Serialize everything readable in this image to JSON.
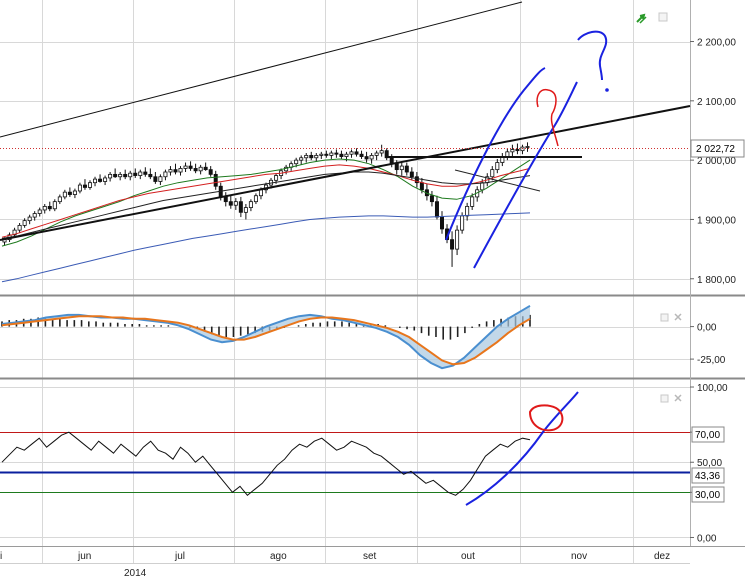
{
  "chart_data": [
    {
      "pane": "price",
      "type": "candlestick",
      "y_ticks": [
        "2 200,00",
        "2 100,00",
        "2 000,00",
        "1 900,00",
        "1 800,00"
      ],
      "y_tick_values": [
        2200,
        2100,
        2000,
        1900,
        1800
      ],
      "ylim": [
        1776,
        2270
      ],
      "last_price_label": "2 022,72",
      "last_price": 2022.72,
      "candles": [
        {
          "o": 1862,
          "h": 1870,
          "l": 1856,
          "c": 1866
        },
        {
          "o": 1866,
          "h": 1878,
          "l": 1862,
          "c": 1874
        },
        {
          "o": 1874,
          "h": 1886,
          "l": 1870,
          "c": 1882
        },
        {
          "o": 1882,
          "h": 1894,
          "l": 1878,
          "c": 1890
        },
        {
          "o": 1890,
          "h": 1902,
          "l": 1886,
          "c": 1898
        },
        {
          "o": 1898,
          "h": 1908,
          "l": 1892,
          "c": 1904
        },
        {
          "o": 1904,
          "h": 1914,
          "l": 1898,
          "c": 1910
        },
        {
          "o": 1910,
          "h": 1920,
          "l": 1905,
          "c": 1916
        },
        {
          "o": 1916,
          "h": 1926,
          "l": 1910,
          "c": 1922
        },
        {
          "o": 1922,
          "h": 1930,
          "l": 1914,
          "c": 1918
        },
        {
          "o": 1918,
          "h": 1934,
          "l": 1914,
          "c": 1930
        },
        {
          "o": 1930,
          "h": 1942,
          "l": 1926,
          "c": 1938
        },
        {
          "o": 1938,
          "h": 1950,
          "l": 1934,
          "c": 1946
        },
        {
          "o": 1946,
          "h": 1954,
          "l": 1938,
          "c": 1942
        },
        {
          "o": 1942,
          "h": 1952,
          "l": 1936,
          "c": 1948
        },
        {
          "o": 1948,
          "h": 1962,
          "l": 1944,
          "c": 1958
        },
        {
          "o": 1958,
          "h": 1968,
          "l": 1950,
          "c": 1954
        },
        {
          "o": 1954,
          "h": 1966,
          "l": 1950,
          "c": 1962
        },
        {
          "o": 1962,
          "h": 1972,
          "l": 1956,
          "c": 1968
        },
        {
          "o": 1968,
          "h": 1976,
          "l": 1962,
          "c": 1964
        },
        {
          "o": 1964,
          "h": 1974,
          "l": 1958,
          "c": 1970
        },
        {
          "o": 1970,
          "h": 1980,
          "l": 1964,
          "c": 1976
        },
        {
          "o": 1976,
          "h": 1986,
          "l": 1970,
          "c": 1972
        },
        {
          "o": 1972,
          "h": 1980,
          "l": 1966,
          "c": 1976
        },
        {
          "o": 1976,
          "h": 1984,
          "l": 1968,
          "c": 1972
        },
        {
          "o": 1972,
          "h": 1982,
          "l": 1966,
          "c": 1978
        },
        {
          "o": 1978,
          "h": 1986,
          "l": 1970,
          "c": 1974
        },
        {
          "o": 1974,
          "h": 1984,
          "l": 1968,
          "c": 1980
        },
        {
          "o": 1980,
          "h": 1988,
          "l": 1972,
          "c": 1976
        },
        {
          "o": 1976,
          "h": 1986,
          "l": 1968,
          "c": 1972
        },
        {
          "o": 1972,
          "h": 1980,
          "l": 1960,
          "c": 1964
        },
        {
          "o": 1964,
          "h": 1976,
          "l": 1958,
          "c": 1972
        },
        {
          "o": 1972,
          "h": 1984,
          "l": 1966,
          "c": 1980
        },
        {
          "o": 1980,
          "h": 1990,
          "l": 1974,
          "c": 1984
        },
        {
          "o": 1984,
          "h": 1994,
          "l": 1976,
          "c": 1980
        },
        {
          "o": 1980,
          "h": 1990,
          "l": 1974,
          "c": 1986
        },
        {
          "o": 1986,
          "h": 1996,
          "l": 1980,
          "c": 1990
        },
        {
          "o": 1990,
          "h": 1998,
          "l": 1982,
          "c": 1986
        },
        {
          "o": 1986,
          "h": 1994,
          "l": 1978,
          "c": 1982
        },
        {
          "o": 1982,
          "h": 1992,
          "l": 1976,
          "c": 1988
        },
        {
          "o": 1988,
          "h": 1996,
          "l": 1982,
          "c": 1984
        },
        {
          "o": 1984,
          "h": 1990,
          "l": 1972,
          "c": 1976
        },
        {
          "o": 1976,
          "h": 1982,
          "l": 1950,
          "c": 1956
        },
        {
          "o": 1956,
          "h": 1962,
          "l": 1932,
          "c": 1938
        },
        {
          "o": 1938,
          "h": 1946,
          "l": 1922,
          "c": 1930
        },
        {
          "o": 1930,
          "h": 1940,
          "l": 1918,
          "c": 1924
        },
        {
          "o": 1924,
          "h": 1936,
          "l": 1916,
          "c": 1930
        },
        {
          "o": 1930,
          "h": 1938,
          "l": 1904,
          "c": 1912
        },
        {
          "o": 1912,
          "h": 1926,
          "l": 1900,
          "c": 1920
        },
        {
          "o": 1920,
          "h": 1934,
          "l": 1914,
          "c": 1930
        },
        {
          "o": 1930,
          "h": 1944,
          "l": 1926,
          "c": 1940
        },
        {
          "o": 1940,
          "h": 1954,
          "l": 1934,
          "c": 1950
        },
        {
          "o": 1950,
          "h": 1962,
          "l": 1944,
          "c": 1958
        },
        {
          "o": 1958,
          "h": 1970,
          "l": 1952,
          "c": 1966
        },
        {
          "o": 1966,
          "h": 1978,
          "l": 1960,
          "c": 1974
        },
        {
          "o": 1974,
          "h": 1986,
          "l": 1968,
          "c": 1982
        },
        {
          "o": 1982,
          "h": 1992,
          "l": 1976,
          "c": 1988
        },
        {
          "o": 1988,
          "h": 1998,
          "l": 1982,
          "c": 1994
        },
        {
          "o": 1994,
          "h": 2004,
          "l": 1988,
          "c": 2000
        },
        {
          "o": 2000,
          "h": 2008,
          "l": 1992,
          "c": 2004
        },
        {
          "o": 2004,
          "h": 2012,
          "l": 1996,
          "c": 2008
        },
        {
          "o": 2008,
          "h": 2014,
          "l": 2000,
          "c": 2004
        },
        {
          "o": 2004,
          "h": 2012,
          "l": 1998,
          "c": 2008
        },
        {
          "o": 2008,
          "h": 2014,
          "l": 2002,
          "c": 2010
        },
        {
          "o": 2010,
          "h": 2016,
          "l": 2004,
          "c": 2008
        },
        {
          "o": 2008,
          "h": 2016,
          "l": 2002,
          "c": 2012
        },
        {
          "o": 2012,
          "h": 2018,
          "l": 2004,
          "c": 2010
        },
        {
          "o": 2010,
          "h": 2016,
          "l": 2002,
          "c": 2006
        },
        {
          "o": 2006,
          "h": 2014,
          "l": 1998,
          "c": 2010
        },
        {
          "o": 2010,
          "h": 2018,
          "l": 2004,
          "c": 2014
        },
        {
          "o": 2014,
          "h": 2020,
          "l": 2006,
          "c": 2010
        },
        {
          "o": 2010,
          "h": 2016,
          "l": 2002,
          "c": 2006
        },
        {
          "o": 2006,
          "h": 2014,
          "l": 1996,
          "c": 2002
        },
        {
          "o": 2002,
          "h": 2012,
          "l": 1994,
          "c": 2008
        },
        {
          "o": 2008,
          "h": 2016,
          "l": 2000,
          "c": 2012
        },
        {
          "o": 2012,
          "h": 2026,
          "l": 2006,
          "c": 2016
        },
        {
          "o": 2016,
          "h": 2020,
          "l": 2000,
          "c": 2004
        },
        {
          "o": 2004,
          "h": 2010,
          "l": 1988,
          "c": 1994
        },
        {
          "o": 1994,
          "h": 2000,
          "l": 1976,
          "c": 1984
        },
        {
          "o": 1984,
          "h": 1996,
          "l": 1974,
          "c": 1990
        },
        {
          "o": 1990,
          "h": 1996,
          "l": 1974,
          "c": 1980
        },
        {
          "o": 1980,
          "h": 1988,
          "l": 1966,
          "c": 1972
        },
        {
          "o": 1972,
          "h": 1980,
          "l": 1954,
          "c": 1962
        },
        {
          "o": 1962,
          "h": 1970,
          "l": 1944,
          "c": 1950
        },
        {
          "o": 1950,
          "h": 1960,
          "l": 1932,
          "c": 1940
        },
        {
          "o": 1940,
          "h": 1948,
          "l": 1922,
          "c": 1930
        },
        {
          "o": 1930,
          "h": 1940,
          "l": 1900,
          "c": 1904
        },
        {
          "o": 1904,
          "h": 1914,
          "l": 1876,
          "c": 1884
        },
        {
          "o": 1884,
          "h": 1892,
          "l": 1860,
          "c": 1866
        },
        {
          "o": 1866,
          "h": 1880,
          "l": 1820,
          "c": 1850
        },
        {
          "o": 1850,
          "h": 1890,
          "l": 1840,
          "c": 1882
        },
        {
          "o": 1882,
          "h": 1912,
          "l": 1876,
          "c": 1906
        },
        {
          "o": 1906,
          "h": 1928,
          "l": 1898,
          "c": 1922
        },
        {
          "o": 1922,
          "h": 1944,
          "l": 1916,
          "c": 1938
        },
        {
          "o": 1938,
          "h": 1956,
          "l": 1930,
          "c": 1950
        },
        {
          "o": 1950,
          "h": 1968,
          "l": 1944,
          "c": 1962
        },
        {
          "o": 1962,
          "h": 1978,
          "l": 1956,
          "c": 1972
        },
        {
          "o": 1972,
          "h": 1990,
          "l": 1966,
          "c": 1984
        },
        {
          "o": 1984,
          "h": 2002,
          "l": 1978,
          "c": 1996
        },
        {
          "o": 1996,
          "h": 2012,
          "l": 1990,
          "c": 2006
        },
        {
          "o": 2006,
          "h": 2020,
          "l": 2000,
          "c": 2014
        },
        {
          "o": 2014,
          "h": 2026,
          "l": 2006,
          "c": 2018
        },
        {
          "o": 2018,
          "h": 2028,
          "l": 2010,
          "c": 2016
        },
        {
          "o": 2016,
          "h": 2026,
          "l": 2010,
          "c": 2022
        },
        {
          "o": 2022,
          "h": 2030,
          "l": 2014,
          "c": 2023
        }
      ],
      "moving_averages": [
        {
          "color": "#1e7a1e",
          "values": [
            1855,
            1862,
            1872,
            1884,
            1896,
            1906,
            1914,
            1922,
            1930,
            1940,
            1948,
            1956,
            1962,
            1966,
            1970,
            1972,
            1974,
            1976,
            1980,
            1984,
            1990,
            1996,
            2000,
            2002,
            2000,
            1994,
            1984,
            1972,
            1956,
            1944,
            1936,
            1934,
            1940,
            1952,
            1968,
            1984,
            2000
          ]
        },
        {
          "color": "#d42020",
          "values": [
            1870,
            1876,
            1884,
            1892,
            1900,
            1908,
            1916,
            1924,
            1932,
            1938,
            1944,
            1948,
            1952,
            1956,
            1960,
            1964,
            1968,
            1972,
            1976,
            1978,
            1982,
            1986,
            1990,
            1992,
            1990,
            1986,
            1980,
            1974,
            1966,
            1960,
            1956,
            1956,
            1960,
            1966,
            1974,
            1980,
            1986
          ]
        },
        {
          "color": "#222222",
          "values": [
            1868,
            1872,
            1878,
            1884,
            1890,
            1896,
            1902,
            1908,
            1914,
            1920,
            1926,
            1932,
            1936,
            1940,
            1944,
            1948,
            1952,
            1956,
            1960,
            1964,
            1968,
            1972,
            1976,
            1978,
            1980,
            1980,
            1978,
            1974,
            1970,
            1966,
            1962,
            1960,
            1960,
            1962,
            1966,
            1970,
            1974
          ]
        },
        {
          "color": "#3b5bb5",
          "values": [
            1795,
            1800,
            1806,
            1812,
            1818,
            1824,
            1830,
            1836,
            1842,
            1848,
            1853,
            1858,
            1863,
            1868,
            1872,
            1876,
            1880,
            1884,
            1888,
            1892,
            1896,
            1900,
            1902,
            1904,
            1905,
            1906,
            1906,
            1905,
            1904,
            1904,
            1905,
            1906,
            1907,
            1908,
            1909,
            1910,
            1911
          ]
        }
      ]
    },
    {
      "pane": "macd",
      "type": "histogram+lines",
      "y_ticks": [
        "0,00",
        "-25,00"
      ],
      "y_tick_values": [
        0,
        -25
      ],
      "ylim": [
        -38,
        22
      ],
      "histogram": [
        4,
        5,
        5,
        6,
        6,
        7,
        7,
        6,
        6,
        5,
        5,
        5,
        4,
        4,
        3,
        3,
        3,
        2,
        2,
        2,
        1,
        1,
        1,
        1,
        0,
        0,
        -1,
        -2,
        -4,
        -6,
        -7,
        -8,
        -8,
        -7,
        -6,
        -5,
        -4,
        -3,
        -2,
        -1,
        0,
        1,
        2,
        3,
        3,
        4,
        4,
        4,
        3,
        3,
        2,
        2,
        2,
        1,
        0,
        -1,
        -2,
        -3,
        -5,
        -7,
        -8,
        -10,
        -10,
        -8,
        -5,
        -1,
        2,
        4,
        5,
        6,
        7,
        8,
        8,
        9
      ],
      "macd_line": [
        2,
        3,
        4,
        5,
        7,
        8,
        9,
        9,
        8,
        7,
        7,
        6,
        6,
        5,
        4,
        3,
        1,
        -2,
        -6,
        -10,
        -12,
        -11,
        -8,
        -4,
        0,
        3,
        6,
        8,
        9,
        8,
        6,
        5,
        3,
        1,
        -1,
        -4,
        -8,
        -14,
        -22,
        -28,
        -32,
        -30,
        -24,
        -16,
        -8,
        0,
        6,
        11,
        16
      ],
      "signal_line": [
        1,
        2,
        3,
        4,
        5,
        6,
        7,
        8,
        8,
        8,
        7,
        7,
        6,
        6,
        5,
        4,
        3,
        1,
        -2,
        -5,
        -8,
        -10,
        -10,
        -8,
        -5,
        -2,
        1,
        4,
        6,
        7,
        7,
        6,
        5,
        3,
        1,
        -1,
        -4,
        -8,
        -14,
        -20,
        -26,
        -29,
        -28,
        -24,
        -18,
        -12,
        -5,
        1,
        6
      ],
      "colors": {
        "macd": "#4a8fd0",
        "signal": "#e8761c",
        "fill": "#a8c8e0",
        "hist": "#222222"
      }
    },
    {
      "pane": "rsi",
      "type": "line",
      "y_ticks": [
        "100,00",
        "70,00",
        "50,00",
        "30,00",
        "0,00"
      ],
      "y_tick_values": [
        100,
        70,
        50,
        30,
        0
      ],
      "ylim": [
        -5,
        104
      ],
      "level_labels": [
        "70,00",
        "43,36",
        "30,00"
      ],
      "levels": [
        {
          "value": 70,
          "color": "#c01818"
        },
        {
          "value": 43.36,
          "color": "#0a1f9e"
        },
        {
          "value": 30,
          "color": "#1e7a1e"
        }
      ],
      "values": [
        50,
        55,
        60,
        58,
        62,
        66,
        60,
        64,
        68,
        70,
        66,
        62,
        58,
        64,
        60,
        56,
        62,
        58,
        54,
        60,
        64,
        58,
        56,
        52,
        60,
        56,
        50,
        54,
        48,
        42,
        36,
        30,
        34,
        28,
        32,
        36,
        42,
        48,
        52,
        58,
        62,
        60,
        64,
        66,
        62,
        58,
        60,
        64,
        62,
        60,
        56,
        54,
        50,
        46,
        42,
        44,
        40,
        36,
        38,
        34,
        30,
        28,
        32,
        38,
        46,
        54,
        58,
        62,
        60,
        64,
        66,
        65
      ]
    }
  ],
  "x_axis": {
    "month_labels": [
      "i",
      "jun",
      "jul",
      "ago",
      "set",
      "out",
      "nov",
      "dez"
    ],
    "year_label": "2014"
  },
  "colors": {
    "grid": "#d8d8d8",
    "annotation_blue": "#1a22e0",
    "annotation_red": "#e01a1a",
    "annotation_green": "#2a9a2a",
    "price_dotted": "#d03030"
  },
  "icons": [
    "zoom-arrow-icon",
    "maximize-icon",
    "close-icon"
  ]
}
